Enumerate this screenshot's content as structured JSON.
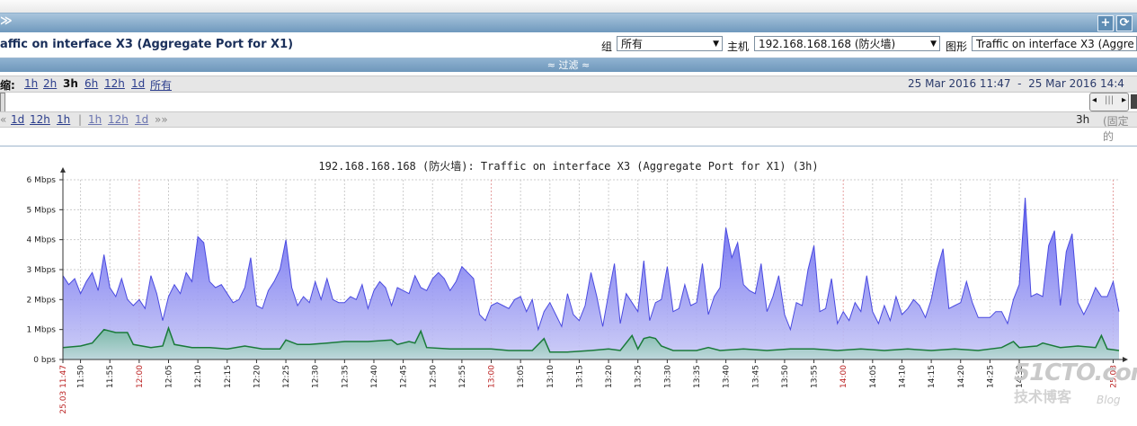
{
  "window": {
    "title_mark": "≫"
  },
  "header": {
    "graph_title": "affic on interface X3 (Aggregate Port for X1)",
    "group_label": "组",
    "group_value": "所有",
    "host_label": "主机",
    "host_value": "192.168.168.168 (防火墙)",
    "graph_label": "图形",
    "graph_value": "Traffic on interface X3 (Aggre"
  },
  "filter": {
    "label": "≈ 过滤 ≈"
  },
  "zoom": {
    "label": "缩:",
    "options": [
      "1h",
      "2h",
      "3h",
      "6h",
      "12h",
      "1d",
      "所有"
    ],
    "selected": "3h",
    "date_range": "25 Mar 2016 11:47  -  25 Mar 2016 14:4"
  },
  "nav": {
    "back": [
      "«",
      "1d",
      "12h",
      "1h",
      "|"
    ],
    "forward": [
      "1h",
      "12h",
      "1d",
      "»»"
    ],
    "period": "3h",
    "fixed": "(固定的"
  },
  "chart_data": {
    "type": "area",
    "title": "192.168.168.168 (防火墙): Traffic on interface X3 (Aggregate Port for X1) (3h)",
    "ylabels": [
      "0 bps",
      "1 Mbps",
      "2 Mbps",
      "3 Mbps",
      "4 Mbps",
      "5 Mbps",
      "6 Mbps"
    ],
    "ylim": [
      0,
      6
    ],
    "unit": "Mbps",
    "xlim_minutes": [
      0,
      180
    ],
    "x_ticks": [
      {
        "label": "25.03 11:47",
        "t": 0,
        "red": true
      },
      {
        "label": "11:50",
        "t": 3
      },
      {
        "label": "11:55",
        "t": 8
      },
      {
        "label": "12:00",
        "t": 13,
        "red": true
      },
      {
        "label": "12:05",
        "t": 18
      },
      {
        "label": "12:10",
        "t": 23
      },
      {
        "label": "12:15",
        "t": 28
      },
      {
        "label": "12:20",
        "t": 33
      },
      {
        "label": "12:25",
        "t": 38
      },
      {
        "label": "12:30",
        "t": 43
      },
      {
        "label": "12:35",
        "t": 48
      },
      {
        "label": "12:40",
        "t": 53
      },
      {
        "label": "12:45",
        "t": 58
      },
      {
        "label": "12:50",
        "t": 63
      },
      {
        "label": "12:55",
        "t": 68
      },
      {
        "label": "13:00",
        "t": 73,
        "red": true
      },
      {
        "label": "13:05",
        "t": 78
      },
      {
        "label": "13:10",
        "t": 83
      },
      {
        "label": "13:15",
        "t": 88
      },
      {
        "label": "13:20",
        "t": 93
      },
      {
        "label": "13:25",
        "t": 98
      },
      {
        "label": "13:30",
        "t": 103
      },
      {
        "label": "13:35",
        "t": 108
      },
      {
        "label": "13:40",
        "t": 113
      },
      {
        "label": "13:45",
        "t": 118
      },
      {
        "label": "13:50",
        "t": 123
      },
      {
        "label": "13:55",
        "t": 128
      },
      {
        "label": "14:00",
        "t": 133,
        "red": true
      },
      {
        "label": "14:05",
        "t": 138
      },
      {
        "label": "14:10",
        "t": 143
      },
      {
        "label": "14:15",
        "t": 148
      },
      {
        "label": "14:20",
        "t": 153
      },
      {
        "label": "14:25",
        "t": 158
      },
      {
        "label": "14:30",
        "t": 163
      },
      {
        "label": "25.03",
        "t": 179,
        "red": true
      }
    ],
    "series": [
      {
        "name": "",
        "color": "#4a4ae0",
        "points": [
          [
            0,
            2.8
          ],
          [
            1,
            2.5
          ],
          [
            2,
            2.7
          ],
          [
            3,
            2.2
          ],
          [
            4,
            2.6
          ],
          [
            5,
            2.9
          ],
          [
            6,
            2.3
          ],
          [
            7,
            3.5
          ],
          [
            8,
            2.4
          ],
          [
            9,
            2.1
          ],
          [
            10,
            2.7
          ],
          [
            11,
            2.0
          ],
          [
            12,
            1.8
          ],
          [
            13,
            2.0
          ],
          [
            14,
            1.7
          ],
          [
            15,
            2.8
          ],
          [
            16,
            2.2
          ],
          [
            17,
            1.3
          ],
          [
            18,
            2.1
          ],
          [
            19,
            2.5
          ],
          [
            20,
            2.2
          ],
          [
            21,
            2.9
          ],
          [
            22,
            2.6
          ],
          [
            23,
            4.1
          ],
          [
            24,
            3.9
          ],
          [
            25,
            2.6
          ],
          [
            26,
            2.4
          ],
          [
            27,
            2.5
          ],
          [
            28,
            2.2
          ],
          [
            29,
            1.9
          ],
          [
            30,
            2.0
          ],
          [
            31,
            2.4
          ],
          [
            32,
            3.4
          ],
          [
            33,
            1.8
          ],
          [
            34,
            1.7
          ],
          [
            35,
            2.3
          ],
          [
            36,
            2.6
          ],
          [
            37,
            3.0
          ],
          [
            38,
            4.0
          ],
          [
            39,
            2.4
          ],
          [
            40,
            1.8
          ],
          [
            41,
            2.1
          ],
          [
            42,
            1.9
          ],
          [
            43,
            2.6
          ],
          [
            44,
            2.0
          ],
          [
            45,
            2.7
          ],
          [
            46,
            2.0
          ],
          [
            47,
            1.9
          ],
          [
            48,
            1.9
          ],
          [
            49,
            2.1
          ],
          [
            50,
            2.0
          ],
          [
            51,
            2.5
          ],
          [
            52,
            1.7
          ],
          [
            53,
            2.3
          ],
          [
            54,
            2.6
          ],
          [
            55,
            2.4
          ],
          [
            56,
            1.8
          ],
          [
            57,
            2.4
          ],
          [
            58,
            2.3
          ],
          [
            59,
            2.2
          ],
          [
            60,
            2.8
          ],
          [
            61,
            2.4
          ],
          [
            62,
            2.3
          ],
          [
            63,
            2.7
          ],
          [
            64,
            2.9
          ],
          [
            65,
            2.7
          ],
          [
            66,
            2.3
          ],
          [
            67,
            2.6
          ],
          [
            68,
            3.1
          ],
          [
            69,
            2.9
          ],
          [
            70,
            2.7
          ],
          [
            71,
            1.5
          ],
          [
            72,
            1.3
          ],
          [
            73,
            1.8
          ],
          [
            74,
            1.9
          ],
          [
            75,
            1.8
          ],
          [
            76,
            1.7
          ],
          [
            77,
            2.0
          ],
          [
            78,
            2.1
          ],
          [
            79,
            1.6
          ],
          [
            80,
            2.0
          ],
          [
            81,
            1.0
          ],
          [
            82,
            1.6
          ],
          [
            83,
            1.9
          ],
          [
            84,
            1.5
          ],
          [
            85,
            1.1
          ],
          [
            86,
            2.2
          ],
          [
            87,
            1.5
          ],
          [
            88,
            1.3
          ],
          [
            89,
            1.8
          ],
          [
            90,
            2.9
          ],
          [
            91,
            2.1
          ],
          [
            92,
            1.1
          ],
          [
            93,
            2.2
          ],
          [
            94,
            3.2
          ],
          [
            95,
            1.2
          ],
          [
            96,
            2.2
          ],
          [
            97,
            1.9
          ],
          [
            98,
            1.6
          ],
          [
            99,
            3.3
          ],
          [
            100,
            1.3
          ],
          [
            101,
            1.9
          ],
          [
            102,
            2.0
          ],
          [
            103,
            3.1
          ],
          [
            104,
            1.6
          ],
          [
            105,
            1.7
          ],
          [
            106,
            2.5
          ],
          [
            107,
            1.8
          ],
          [
            108,
            1.9
          ],
          [
            109,
            3.2
          ],
          [
            110,
            1.5
          ],
          [
            111,
            2.1
          ],
          [
            112,
            2.4
          ],
          [
            113,
            4.4
          ],
          [
            114,
            3.4
          ],
          [
            115,
            3.9
          ],
          [
            116,
            2.5
          ],
          [
            117,
            2.3
          ],
          [
            118,
            2.2
          ],
          [
            119,
            3.2
          ],
          [
            120,
            1.6
          ],
          [
            121,
            2.1
          ],
          [
            122,
            2.8
          ],
          [
            123,
            1.5
          ],
          [
            124,
            1.0
          ],
          [
            125,
            1.9
          ],
          [
            126,
            1.8
          ],
          [
            127,
            3.0
          ],
          [
            128,
            3.8
          ],
          [
            129,
            1.6
          ],
          [
            130,
            1.7
          ],
          [
            131,
            2.7
          ],
          [
            132,
            1.2
          ],
          [
            133,
            1.6
          ],
          [
            134,
            1.3
          ],
          [
            135,
            1.9
          ],
          [
            136,
            1.6
          ],
          [
            137,
            2.8
          ],
          [
            138,
            1.6
          ],
          [
            139,
            1.2
          ],
          [
            140,
            1.8
          ],
          [
            141,
            1.3
          ],
          [
            142,
            2.1
          ],
          [
            143,
            1.5
          ],
          [
            144,
            1.7
          ],
          [
            145,
            2.0
          ],
          [
            146,
            1.8
          ],
          [
            147,
            1.4
          ],
          [
            148,
            2.0
          ],
          [
            149,
            3.0
          ],
          [
            150,
            3.7
          ],
          [
            151,
            1.7
          ],
          [
            152,
            1.8
          ],
          [
            153,
            1.9
          ],
          [
            154,
            2.6
          ],
          [
            155,
            1.9
          ],
          [
            156,
            1.4
          ],
          [
            157,
            1.4
          ],
          [
            158,
            1.4
          ],
          [
            159,
            1.6
          ],
          [
            160,
            1.6
          ],
          [
            161,
            1.2
          ],
          [
            162,
            2.0
          ],
          [
            163,
            2.5
          ],
          [
            164,
            5.4
          ],
          [
            165,
            2.1
          ],
          [
            166,
            2.2
          ],
          [
            167,
            2.1
          ],
          [
            168,
            3.8
          ],
          [
            169,
            4.3
          ],
          [
            170,
            1.8
          ],
          [
            171,
            3.6
          ],
          [
            172,
            4.2
          ],
          [
            173,
            1.9
          ],
          [
            174,
            1.5
          ],
          [
            175,
            1.9
          ],
          [
            176,
            2.4
          ],
          [
            177,
            2.1
          ],
          [
            178,
            2.1
          ],
          [
            179,
            2.6
          ],
          [
            180,
            1.6
          ]
        ]
      },
      {
        "name": "",
        "color": "#1a7a3a",
        "points": [
          [
            0,
            0.4
          ],
          [
            3,
            0.45
          ],
          [
            5,
            0.55
          ],
          [
            7,
            1.0
          ],
          [
            9,
            0.9
          ],
          [
            11,
            0.9
          ],
          [
            12,
            0.5
          ],
          [
            15,
            0.4
          ],
          [
            17,
            0.45
          ],
          [
            18,
            1.05
          ],
          [
            19,
            0.5
          ],
          [
            22,
            0.4
          ],
          [
            25,
            0.4
          ],
          [
            28,
            0.35
          ],
          [
            31,
            0.45
          ],
          [
            34,
            0.35
          ],
          [
            37,
            0.35
          ],
          [
            38,
            0.65
          ],
          [
            40,
            0.5
          ],
          [
            42,
            0.5
          ],
          [
            45,
            0.55
          ],
          [
            48,
            0.6
          ],
          [
            52,
            0.6
          ],
          [
            56,
            0.65
          ],
          [
            57,
            0.5
          ],
          [
            59,
            0.6
          ],
          [
            60,
            0.55
          ],
          [
            61,
            0.95
          ],
          [
            62,
            0.4
          ],
          [
            66,
            0.35
          ],
          [
            70,
            0.35
          ],
          [
            73,
            0.35
          ],
          [
            76,
            0.3
          ],
          [
            80,
            0.3
          ],
          [
            82,
            0.7
          ],
          [
            83,
            0.25
          ],
          [
            86,
            0.25
          ],
          [
            90,
            0.3
          ],
          [
            93,
            0.35
          ],
          [
            95,
            0.3
          ],
          [
            97,
            0.8
          ],
          [
            98,
            0.35
          ],
          [
            99,
            0.7
          ],
          [
            100,
            0.75
          ],
          [
            101,
            0.7
          ],
          [
            102,
            0.45
          ],
          [
            104,
            0.3
          ],
          [
            108,
            0.3
          ],
          [
            110,
            0.4
          ],
          [
            112,
            0.3
          ],
          [
            116,
            0.35
          ],
          [
            120,
            0.3
          ],
          [
            124,
            0.35
          ],
          [
            128,
            0.35
          ],
          [
            132,
            0.3
          ],
          [
            136,
            0.35
          ],
          [
            140,
            0.3
          ],
          [
            144,
            0.35
          ],
          [
            148,
            0.3
          ],
          [
            152,
            0.35
          ],
          [
            156,
            0.3
          ],
          [
            160,
            0.4
          ],
          [
            162,
            0.6
          ],
          [
            163,
            0.4
          ],
          [
            166,
            0.45
          ],
          [
            167,
            0.55
          ],
          [
            170,
            0.4
          ],
          [
            173,
            0.45
          ],
          [
            176,
            0.4
          ],
          [
            177,
            0.8
          ],
          [
            178,
            0.35
          ],
          [
            180,
            0.3
          ]
        ]
      }
    ]
  },
  "watermark": {
    "line1": "51CTO.com",
    "line2": "技术博客",
    "line3": "Blog"
  }
}
